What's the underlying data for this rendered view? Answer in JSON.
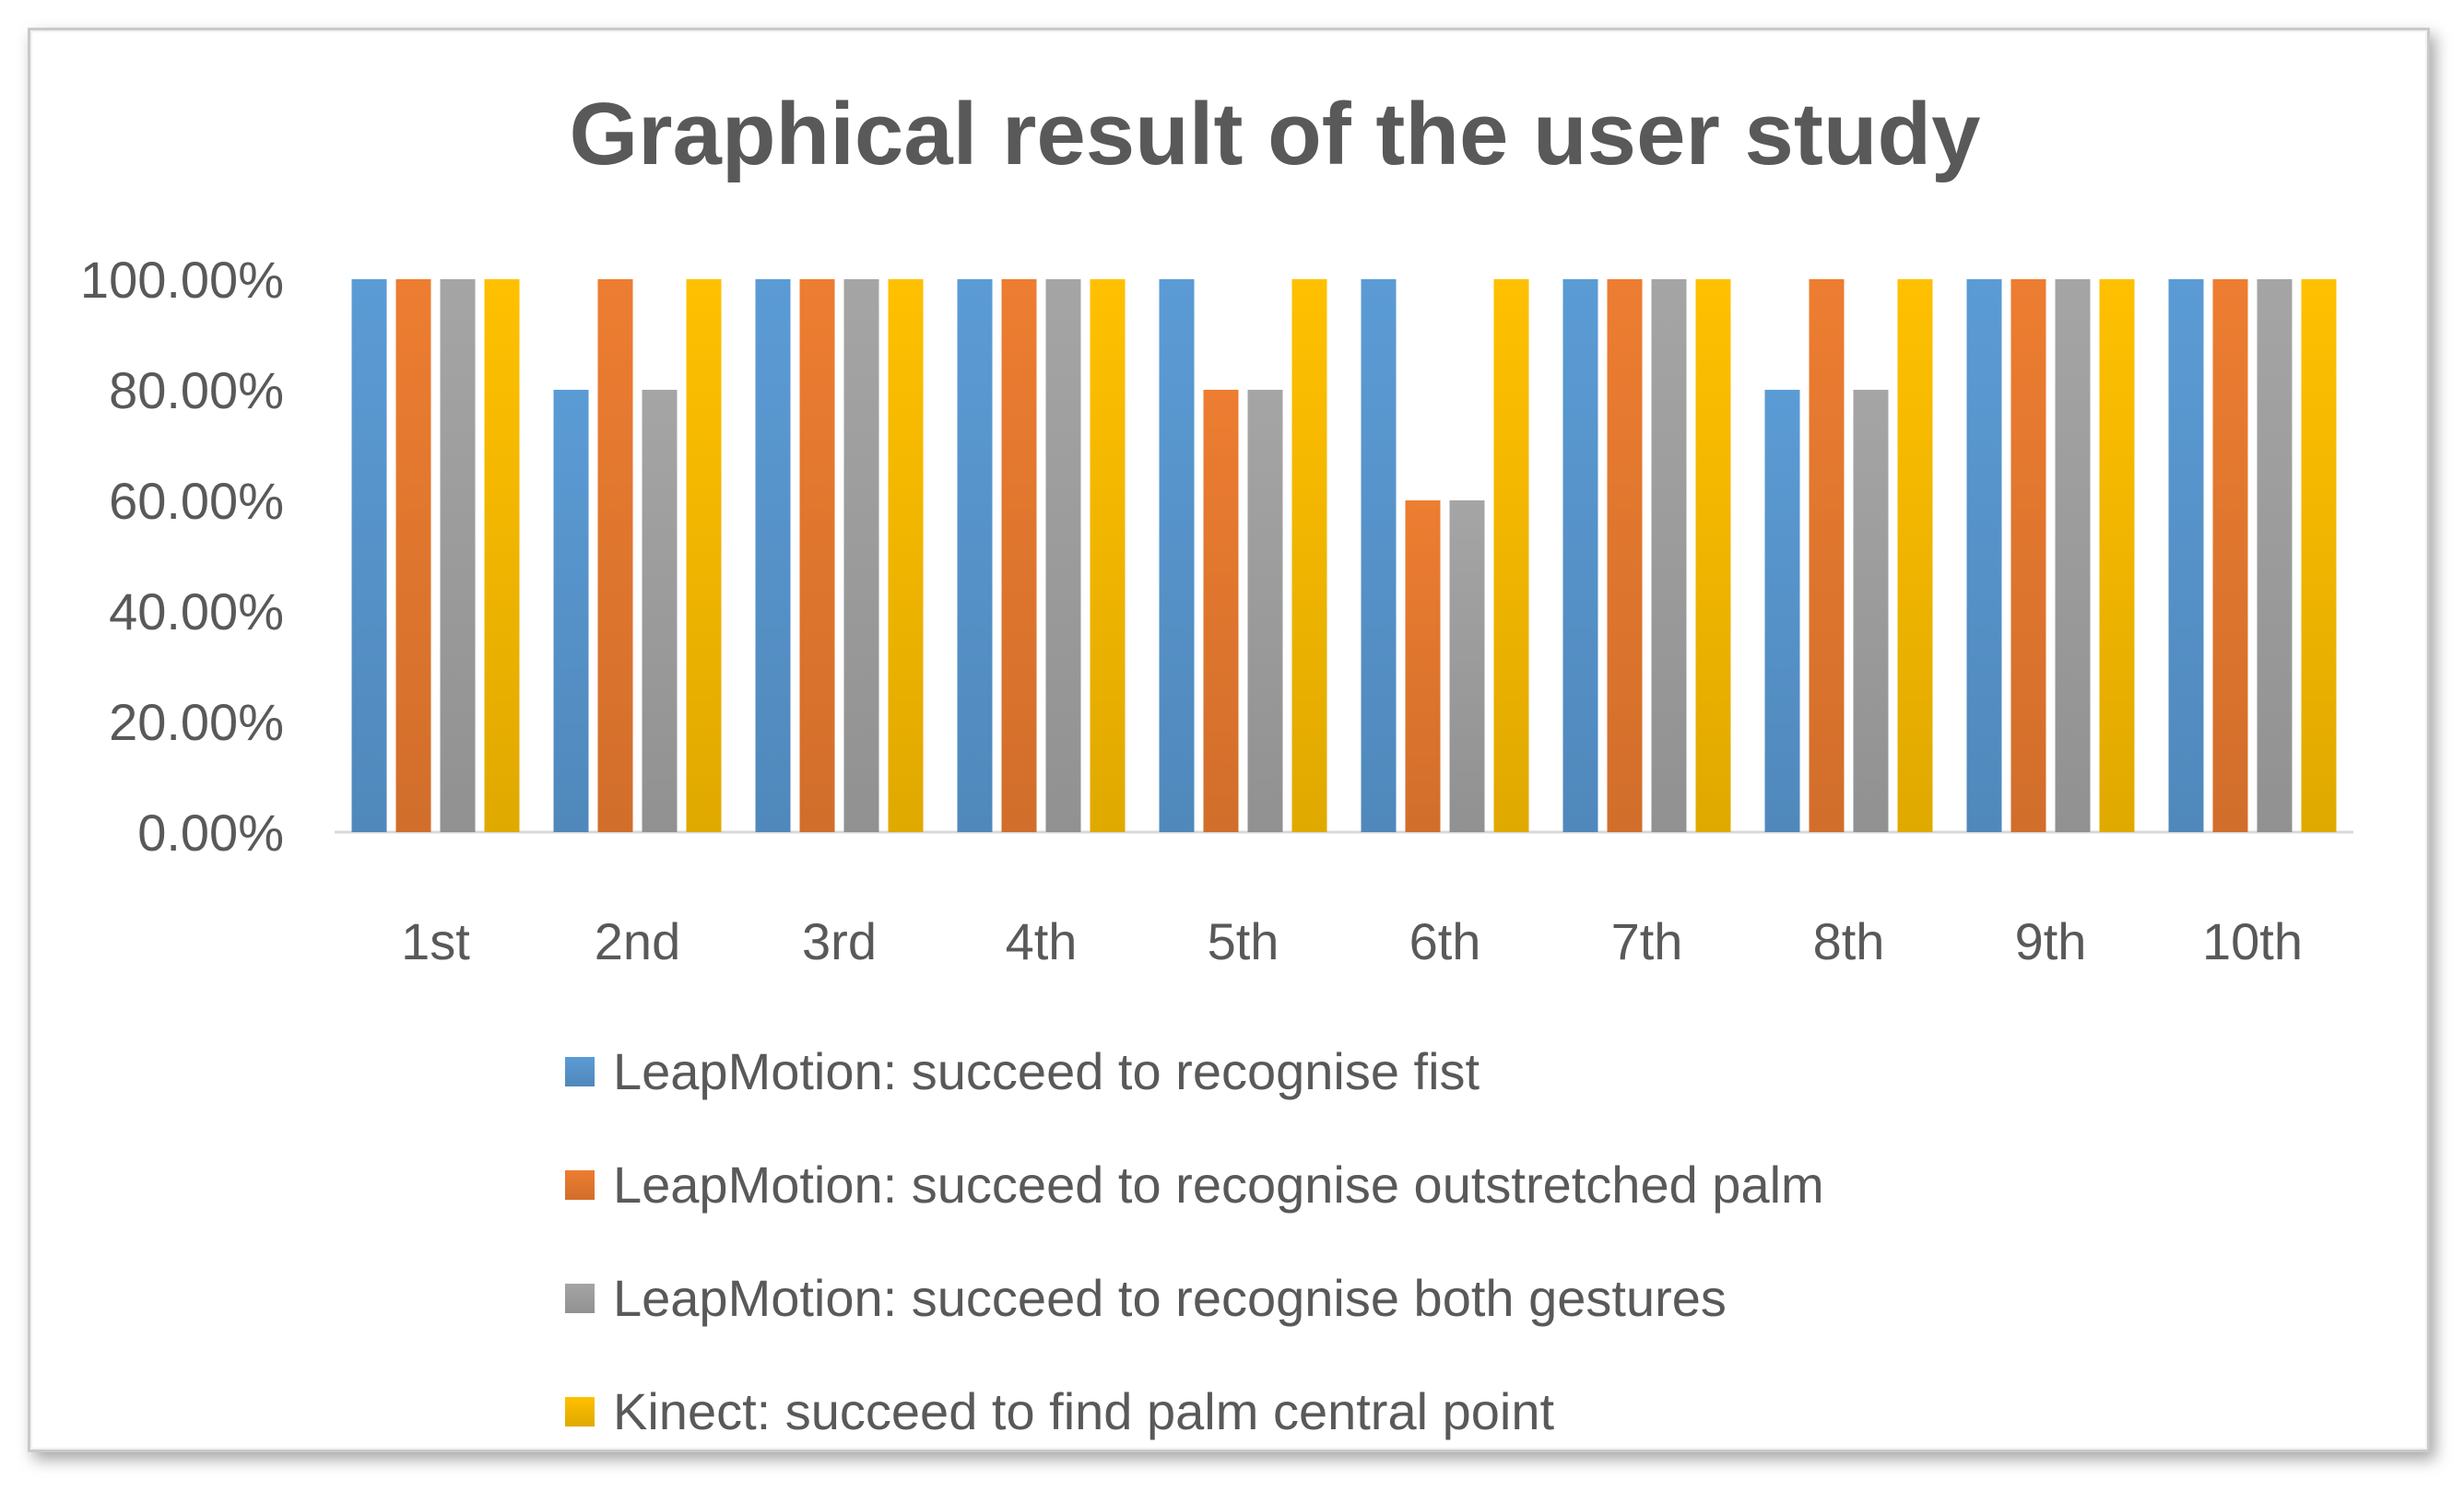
{
  "chart_data": {
    "type": "bar",
    "title": "Graphical result of the user study",
    "xlabel": "",
    "ylabel": "",
    "categories": [
      "1st",
      "2nd",
      "3rd",
      "4th",
      "5th",
      "6th",
      "7th",
      "8th",
      "9th",
      "10th"
    ],
    "ylim": [
      0,
      1
    ],
    "yticks": [
      "0.00%",
      "20.00%",
      "40.00%",
      "60.00%",
      "80.00%",
      "100.00%"
    ],
    "grid": false,
    "legend_position": "bottom",
    "series": [
      {
        "name": "LeapMotion: succeed to recognise fist",
        "color": "#5B9BD5",
        "values": [
          1.0,
          0.8,
          1.0,
          1.0,
          1.0,
          1.0,
          1.0,
          0.8,
          1.0,
          1.0
        ]
      },
      {
        "name": "LeapMotion: succeed to recognise outstretched palm",
        "color": "#ED7D31",
        "values": [
          1.0,
          1.0,
          1.0,
          1.0,
          0.8,
          0.6,
          1.0,
          1.0,
          1.0,
          1.0
        ]
      },
      {
        "name": "LeapMotion: succeed to recognise both gestures",
        "color": "#A5A5A5",
        "values": [
          1.0,
          0.8,
          1.0,
          1.0,
          0.8,
          0.6,
          1.0,
          0.8,
          1.0,
          1.0
        ]
      },
      {
        "name": "Kinect: succeed to find palm central point",
        "color": "#FFC000",
        "values": [
          1.0,
          1.0,
          1.0,
          1.0,
          1.0,
          1.0,
          1.0,
          1.0,
          1.0,
          1.0
        ]
      }
    ]
  }
}
